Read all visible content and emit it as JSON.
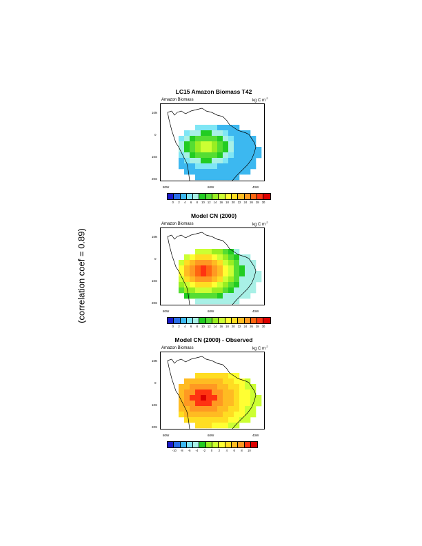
{
  "side_text": "(correlation coef = 0.89)",
  "colors_pos": [
    "#1a1acc",
    "#2a6fe8",
    "#3cb8f0",
    "#7fe6f5",
    "#a8f0e6",
    "#22cc22",
    "#55dd33",
    "#99ee22",
    "#ccff33",
    "#ffff33",
    "#ffdd22",
    "#ffbb22",
    "#ff9922",
    "#ff6611",
    "#ff3311",
    "#dd0000"
  ],
  "colors_diff": [
    "#1a1acc",
    "#2a6fe8",
    "#3cb8f0",
    "#7fe6f5",
    "#a8f0e6",
    "#22cc22",
    "#99ee22",
    "#ccff33",
    "#ffff33",
    "#ffdd22",
    "#ffbb22",
    "#ff9922",
    "#ff3311",
    "#dd0000"
  ],
  "panels": [
    {
      "title": "LC15 Amazon Biomass T42",
      "left_label": "Amazon Biomass",
      "unit_label": "kg C m",
      "unit_exp": "-2",
      "lat_labels": [
        "10N",
        "0",
        "10S",
        "20S"
      ],
      "lon_labels": [
        "80W",
        "60W",
        "40W"
      ],
      "tick_labels": [
        "0",
        "2",
        "4",
        "6",
        "8",
        "10",
        "12",
        "14",
        "16",
        "18",
        "20",
        "22",
        "24",
        "26",
        "28",
        "30"
      ],
      "field": "obs"
    },
    {
      "title": "Model CN (2000)",
      "left_label": "Amazon Biomass",
      "unit_label": "kg C m",
      "unit_exp": "-2",
      "lat_labels": [
        "10N",
        "0",
        "10S",
        "20S"
      ],
      "lon_labels": [
        "80W",
        "60W",
        "40W"
      ],
      "tick_labels": [
        "0",
        "2",
        "4",
        "6",
        "8",
        "10",
        "12",
        "14",
        "16",
        "18",
        "20",
        "22",
        "24",
        "26",
        "28",
        "30"
      ],
      "field": "model"
    },
    {
      "title": "Model CN (2000) - Observed",
      "left_label": "Amazon Biomass",
      "unit_label": "kg C m",
      "unit_exp": "-2",
      "lat_labels": [
        "10N",
        "0",
        "10S",
        "20S"
      ],
      "lon_labels": [
        "80W",
        "60W",
        "40W"
      ],
      "tick_labels": [
        "-10",
        "-8",
        "-6",
        "-4",
        "-2",
        "0",
        "2",
        "4",
        "6",
        "8",
        "10"
      ],
      "field": "diff"
    }
  ]
}
